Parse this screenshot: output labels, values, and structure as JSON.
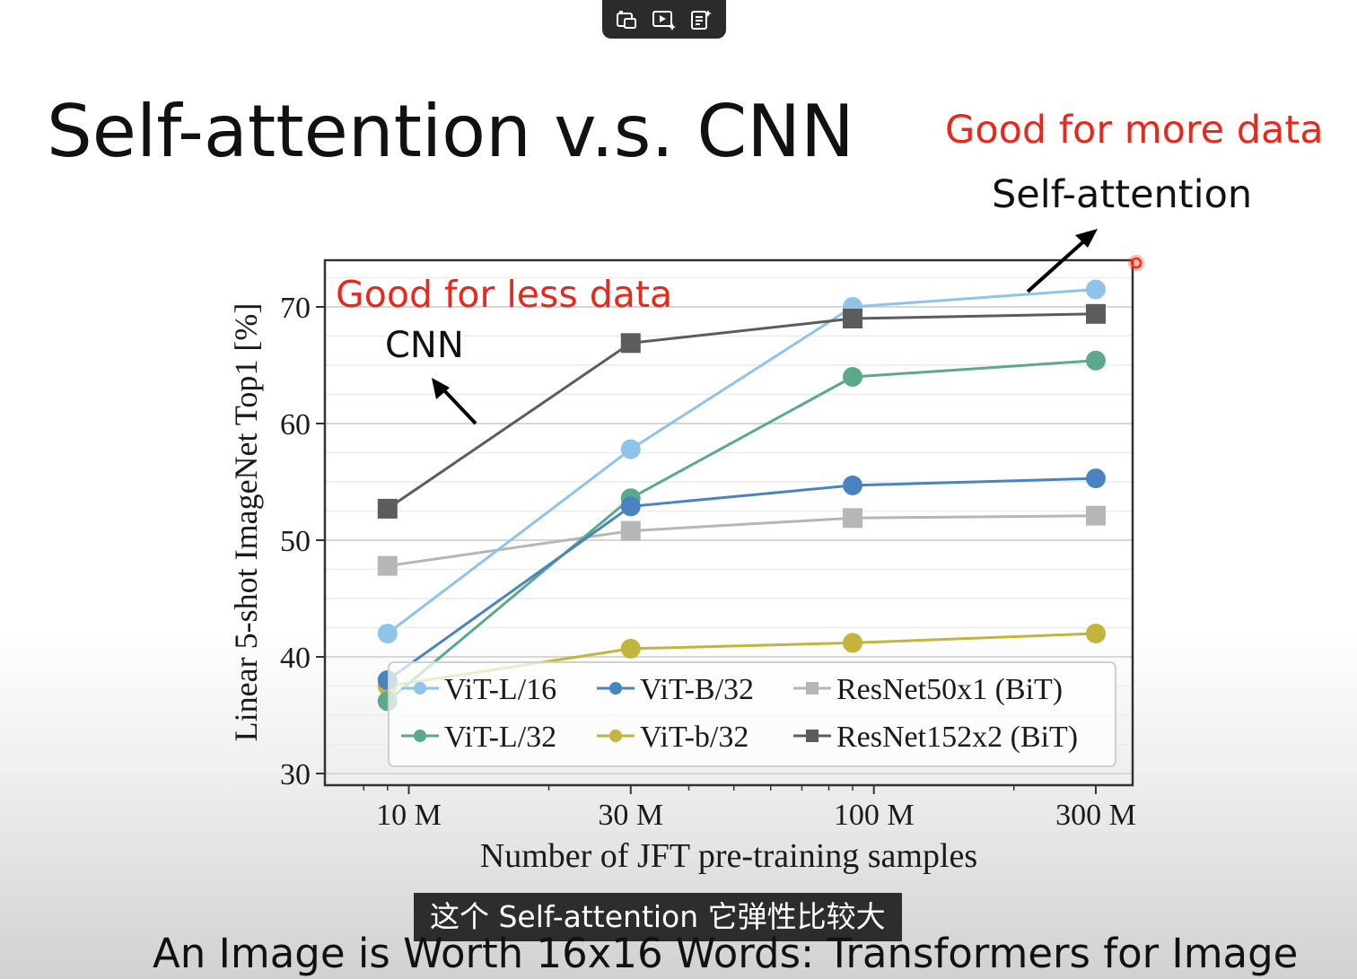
{
  "toolbar": {
    "buttons": [
      {
        "name": "picture-in-picture-button",
        "icon": "pip-icon"
      },
      {
        "name": "play-sparkle-button",
        "icon": "play-sparkle-icon"
      },
      {
        "name": "notes-sparkle-button",
        "icon": "notes-sparkle-icon"
      }
    ]
  },
  "slide": {
    "title": "Self-attention v.s. CNN",
    "annotation_more": "Good for more data",
    "annotation_sa": "Self-attention",
    "annotation_less": "Good for less data",
    "annotation_cnn": "CNN",
    "subtitle": "这个 Self-attention 它弹性比较大",
    "footer": "An Image is Worth 16x16 Words: Transformers for Image"
  },
  "colors": {
    "annotation_red": "#e8281c",
    "vit_l16": "#8ec3ea",
    "vit_b32": "#4a84c0",
    "resnet50": "#b6b6b6",
    "vit_l32": "#5aa98a",
    "vit_b32_small": "#c4b43e",
    "resnet152": "#5c5c5c"
  },
  "chart_data": {
    "type": "line",
    "xlabel": "Number of JFT pre-training samples",
    "ylabel": "Linear 5-shot ImageNet Top1 [%]",
    "x": [
      "9 M",
      "30 M",
      "90 M",
      "300 M"
    ],
    "x_values_millions": [
      9,
      30,
      90,
      300
    ],
    "x_scale": "log",
    "x_ticks": [
      "10 M",
      "30 M",
      "100 M",
      "300 M"
    ],
    "y_ticks": [
      30,
      40,
      50,
      60,
      70
    ],
    "ylim": [
      29,
      74
    ],
    "grid": true,
    "legend_position": "bottom-right",
    "series": [
      {
        "name": "ViT-L/16",
        "marker": "circle",
        "values": [
          42.0,
          57.8,
          70.0,
          71.5
        ]
      },
      {
        "name": "ViT-B/32",
        "marker": "circle",
        "values": [
          38.0,
          52.9,
          54.7,
          55.3
        ]
      },
      {
        "name": "ResNet50x1 (BiT)",
        "marker": "square",
        "values": [
          47.8,
          50.8,
          51.9,
          52.1
        ]
      },
      {
        "name": "ViT-L/32",
        "marker": "circle",
        "values": [
          36.2,
          53.6,
          64.0,
          65.4
        ]
      },
      {
        "name": "ViT-b/32",
        "marker": "circle",
        "values": [
          37.5,
          40.7,
          41.2,
          42.0
        ]
      },
      {
        "name": "ResNet152x2 (BiT)",
        "marker": "square",
        "values": [
          52.7,
          66.9,
          69.0,
          69.4
        ]
      }
    ]
  }
}
